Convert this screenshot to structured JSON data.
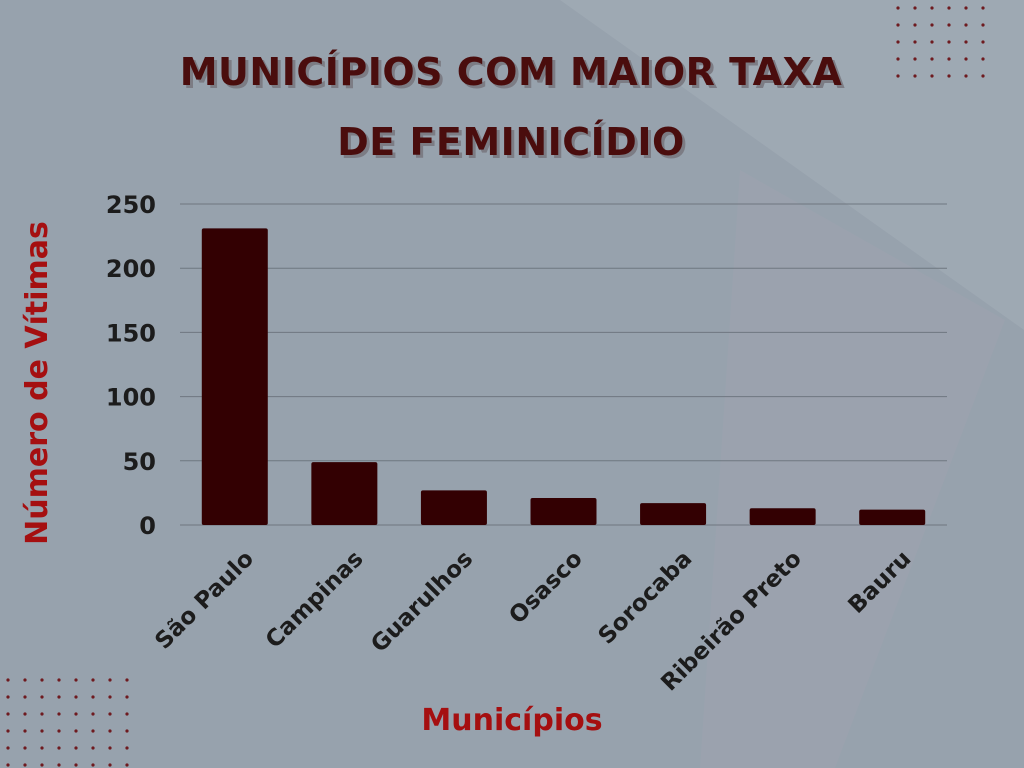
{
  "colors": {
    "background": "#97a2ad",
    "bar": "#330002",
    "title": "#4a0d0d",
    "axis_label": "#a50f10",
    "text": "#1c1c1c",
    "grid": "#6f7780"
  },
  "chart_data": {
    "type": "bar",
    "title": "MUNICÍPIOS COM MAIOR TAXA DE FEMINICÍDIO",
    "title_lines": [
      "MUNICÍPIOS COM MAIOR TAXA",
      "DE FEMINICÍDIO"
    ],
    "xlabel": "Municípios",
    "ylabel": "Número de Vítimas",
    "categories": [
      "São Paulo",
      "Campinas",
      "Guarulhos",
      "Osasco",
      "Sorocaba",
      "Ribeirão Preto",
      "Bauru"
    ],
    "values": [
      231,
      49,
      27,
      21,
      17,
      13,
      12
    ],
    "ylim": [
      0,
      250
    ],
    "yticks": [
      0,
      50,
      100,
      150,
      200,
      250
    ],
    "grid": true,
    "legend": "none"
  }
}
